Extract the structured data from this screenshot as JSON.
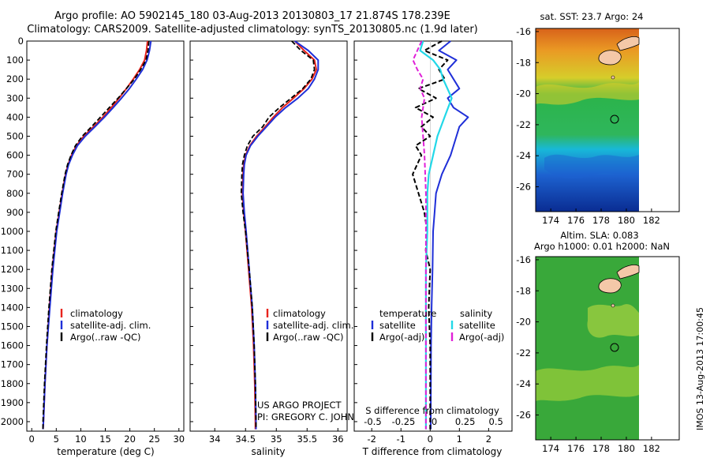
{
  "header": {
    "line1": "Argo profile: AO 5902145_180 03-Aug-2013 20130803_17 21.874S 178.239E",
    "line2": "Climatology: CARS2009. Satellite-adjusted climatology: synTS_20130805.nc (1.9d later)"
  },
  "colors": {
    "climatology": "#e8231c",
    "satellite": "#1f2fd8",
    "argo": "#000000",
    "satellite_salinity": "#22d8e8",
    "argo_salinity": "#e020d8"
  },
  "legend": {
    "climatology": "climatology",
    "satellite_adj": "satellite-adj. clim.",
    "argo_raw": "Argo(..raw -QC)",
    "temperature": "temperature",
    "salinity": "salinity",
    "satellite": "satellite",
    "argo_adj": "Argo(-adj)"
  },
  "credits": {
    "project": "US ARGO PROJECT",
    "pi": "PI: GREGORY C. JOHNSON"
  },
  "stamp": "IMOS 13-Aug-2013 17:00:45",
  "chart_data": [
    {
      "type": "line",
      "xlabel": "temperature (deg C)",
      "ylim": [
        2050,
        0
      ],
      "xlim": [
        -1,
        31
      ],
      "xticks": [
        0,
        5,
        10,
        15,
        20,
        25,
        30
      ],
      "yticks": [
        0,
        100,
        200,
        300,
        400,
        500,
        600,
        700,
        800,
        900,
        1000,
        1100,
        1200,
        1300,
        1400,
        1500,
        1600,
        1700,
        1800,
        1900,
        2000
      ],
      "series": [
        {
          "name": "climatology",
          "depth": [
            0,
            50,
            100,
            150,
            200,
            250,
            300,
            350,
            400,
            450,
            500,
            550,
            600,
            650,
            700,
            800,
            900,
            1000,
            1200,
            1400,
            1600,
            1800,
            2000,
            2040
          ],
          "values": [
            23.6,
            23.4,
            23.0,
            22.0,
            20.7,
            19.3,
            17.8,
            16.2,
            14.5,
            12.6,
            10.6,
            9.1,
            8.1,
            7.4,
            6.9,
            6.2,
            5.6,
            5.0,
            4.2,
            3.6,
            3.1,
            2.7,
            2.4,
            2.3
          ]
        },
        {
          "name": "satellite-adj. clim.",
          "depth": [
            0,
            50,
            100,
            150,
            200,
            250,
            300,
            350,
            400,
            450,
            500,
            550,
            600,
            650,
            700,
            800,
            900,
            1000,
            1200,
            1400,
            1600,
            1800,
            2000,
            2040
          ],
          "values": [
            24.3,
            24.0,
            23.5,
            22.6,
            21.3,
            19.9,
            18.3,
            16.6,
            14.8,
            12.9,
            10.9,
            9.3,
            8.3,
            7.5,
            7.0,
            6.3,
            5.7,
            5.1,
            4.3,
            3.7,
            3.1,
            2.7,
            2.4,
            2.3
          ]
        },
        {
          "name": "Argo(..raw -QC)",
          "depth": [
            0,
            50,
            100,
            150,
            200,
            250,
            300,
            350,
            400,
            450,
            500,
            550,
            600,
            650,
            700,
            800,
            900,
            1000,
            1200,
            1400,
            1600,
            1800,
            2000,
            2040
          ],
          "values": [
            23.9,
            23.7,
            23.3,
            22.2,
            20.9,
            19.3,
            17.6,
            15.8,
            14.0,
            12.2,
            10.3,
            8.9,
            8.0,
            7.3,
            6.8,
            6.1,
            5.5,
            4.9,
            4.1,
            3.5,
            3.0,
            2.6,
            2.3,
            2.3
          ]
        }
      ]
    },
    {
      "type": "line",
      "xlabel": "salinity",
      "ylim": [
        2050,
        0
      ],
      "xlim": [
        33.6,
        36.15
      ],
      "xticks": [
        34,
        34.5,
        35,
        35.5,
        36
      ],
      "series": [
        {
          "name": "climatology",
          "depth": [
            0,
            50,
            100,
            150,
            200,
            250,
            300,
            350,
            400,
            450,
            500,
            550,
            600,
            650,
            700,
            800,
            900,
            1000,
            1200,
            1400,
            1600,
            1800,
            2000,
            2040
          ],
          "values": [
            35.3,
            35.45,
            35.62,
            35.65,
            35.58,
            35.45,
            35.28,
            35.1,
            34.95,
            34.82,
            34.68,
            34.57,
            34.5,
            34.47,
            34.46,
            34.45,
            34.47,
            34.5,
            34.55,
            34.6,
            34.63,
            34.65,
            34.66,
            34.66
          ]
        },
        {
          "name": "satellite-adj. clim.",
          "depth": [
            0,
            50,
            100,
            150,
            200,
            250,
            300,
            350,
            400,
            450,
            500,
            550,
            600,
            650,
            700,
            800,
            900,
            1000,
            1200,
            1400,
            1600,
            1800,
            2000,
            2040
          ],
          "values": [
            35.3,
            35.52,
            35.68,
            35.68,
            35.62,
            35.52,
            35.35,
            35.15,
            34.98,
            34.84,
            34.7,
            34.58,
            34.51,
            34.48,
            34.47,
            34.46,
            34.48,
            34.51,
            34.56,
            34.61,
            34.64,
            34.66,
            34.67,
            34.67
          ]
        },
        {
          "name": "Argo(..raw -QC)",
          "depth": [
            0,
            50,
            100,
            150,
            200,
            250,
            300,
            350,
            400,
            450,
            500,
            550,
            600,
            650,
            700,
            800,
            900,
            1000,
            1200,
            1400,
            1600,
            1800,
            2000,
            2040
          ],
          "values": [
            35.25,
            35.4,
            35.6,
            35.62,
            35.56,
            35.43,
            35.24,
            35.05,
            34.88,
            34.78,
            34.62,
            34.53,
            34.48,
            34.45,
            34.44,
            34.43,
            34.46,
            34.5,
            34.56,
            34.61,
            34.64,
            34.66,
            34.67,
            34.67
          ]
        }
      ]
    },
    {
      "type": "line",
      "xlabel": "T difference from climatology",
      "xlabel2": "S difference from climatology",
      "ylim": [
        2050,
        0
      ],
      "xlim": [
        -2.6,
        2.8
      ],
      "xticks": [
        -2,
        -1,
        0,
        1,
        2
      ],
      "xticks2_labels": [
        "-0.5",
        "-0.25",
        "0",
        "0.25",
        "0.5"
      ],
      "xticks2_values": [
        -0.5,
        -0.25,
        0,
        0.25,
        0.5
      ],
      "series": [
        {
          "name": "temperature satellite",
          "group": "temperature",
          "depth": [
            0,
            50,
            100,
            150,
            200,
            250,
            300,
            350,
            400,
            450,
            500,
            600,
            700,
            800,
            900,
            1000,
            1200,
            1400,
            1600,
            2000,
            2040
          ],
          "values": [
            0.7,
            0.3,
            0.9,
            0.6,
            0.8,
            1.0,
            0.6,
            0.8,
            1.3,
            1.0,
            0.9,
            0.7,
            0.4,
            0.2,
            0.15,
            0.1,
            0.08,
            0.05,
            0.03,
            0.02,
            0.02
          ]
        },
        {
          "name": "temperature Argo(-adj)",
          "group": "temperature",
          "depth": [
            0,
            50,
            100,
            150,
            200,
            250,
            300,
            350,
            400,
            450,
            500,
            550,
            600,
            700,
            800,
            900,
            1000,
            1100,
            1200,
            1400,
            1600,
            2000,
            2040
          ],
          "values": [
            0.4,
            -0.2,
            0.6,
            0.3,
            0.5,
            -0.4,
            0.2,
            -0.5,
            0.1,
            -0.3,
            0.0,
            -0.5,
            -0.3,
            -0.6,
            -0.4,
            -0.2,
            -0.1,
            -0.15,
            0.0,
            -0.05,
            0.0,
            0.0,
            0.0
          ]
        },
        {
          "name": "salinity satellite",
          "group": "salinity",
          "depth": [
            0,
            50,
            100,
            150,
            200,
            250,
            300,
            400,
            500,
            600,
            700,
            800,
            900,
            1000,
            1200,
            1400,
            1600,
            2000,
            2040
          ],
          "values": [
            -0.02,
            -0.04,
            0.05,
            0.1,
            0.12,
            0.15,
            0.18,
            0.13,
            0.08,
            0.05,
            0.02,
            0.01,
            0.01,
            0.01,
            0.0,
            0.0,
            0.0,
            0.0,
            0.0
          ]
        },
        {
          "name": "salinity Argo(-adj)",
          "group": "salinity",
          "depth": [
            0,
            50,
            100,
            150,
            200,
            250,
            300,
            400,
            500,
            600,
            700,
            800,
            900,
            1000,
            1200,
            1400,
            1600,
            2000,
            2040
          ],
          "values": [
            -0.03,
            -0.06,
            -0.09,
            -0.06,
            -0.02,
            -0.04,
            -0.01,
            -0.03,
            -0.02,
            -0.01,
            -0.005,
            0.0,
            0.0,
            0.0,
            0.0,
            0.0,
            0.0,
            0.0,
            0.0
          ]
        }
      ]
    },
    {
      "type": "heatmap",
      "title": "sat. SST: 23.7 Argo: 24",
      "xlim": [
        172.8,
        184.2
      ],
      "ylim": [
        -27.6,
        -15.8
      ],
      "xticks": [
        174,
        176,
        178,
        180,
        182
      ],
      "yticks": [
        -16,
        -18,
        -20,
        -22,
        -24,
        -26
      ],
      "xtick_labels": [
        "174",
        "176",
        "178",
        "180",
        "182"
      ],
      "ytick_labels": [
        "-16",
        "-18",
        "-20",
        "-22",
        "-24",
        "-26"
      ],
      "data_lon_range": [
        172.8,
        180
      ],
      "profile_location": [
        178.239,
        -21.874
      ]
    },
    {
      "type": "heatmap",
      "title": "Altim. SLA: 0.083",
      "subtitle": "Argo h1000: 0.01 h2000: NaN",
      "xlim": [
        172.8,
        184.2
      ],
      "ylim": [
        -27.6,
        -15.8
      ],
      "xticks": [
        174,
        176,
        178,
        180,
        182
      ],
      "yticks": [
        -16,
        -18,
        -20,
        -22,
        -24,
        -26
      ],
      "xtick_labels": [
        "174",
        "176",
        "178",
        "180",
        "182"
      ],
      "ytick_labels": [
        "-16",
        "-18",
        "-20",
        "-22",
        "-24",
        "-26"
      ],
      "data_lon_range": [
        172.8,
        180
      ],
      "profile_location": [
        178.239,
        -21.874
      ]
    }
  ]
}
